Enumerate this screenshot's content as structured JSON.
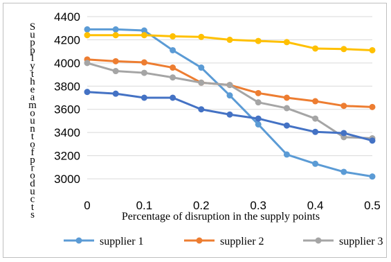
{
  "chart_data": {
    "type": "line",
    "title": "",
    "xlabel": "Percentage of disruption  in the supply points",
    "ylabel": "Supply the amount of products",
    "xlim": [
      0,
      0.5
    ],
    "ylim": [
      3000,
      4400
    ],
    "xticks": [
      "0",
      "0.1",
      "0.2",
      "0.3",
      "0.4",
      "0.5"
    ],
    "yticks": [
      "3000",
      "3200",
      "3400",
      "3600",
      "3800",
      "4000",
      "4200",
      "4400"
    ],
    "x": [
      0,
      0.05,
      0.1,
      0.15,
      0.2,
      0.25,
      0.3,
      0.35,
      0.4,
      0.45,
      0.5
    ],
    "grid": true,
    "legend_position": "bottom",
    "series": [
      {
        "name": "supplier 1",
        "color": "#5B9BD5",
        "values": [
          4290,
          4290,
          4280,
          4110,
          3960,
          3720,
          3470,
          3210,
          3130,
          3060,
          3020
        ]
      },
      {
        "name": "supplier 2",
        "color": "#ED7D31",
        "values": [
          4030,
          4015,
          4005,
          3960,
          3830,
          3810,
          3740,
          3700,
          3670,
          3630,
          3620
        ]
      },
      {
        "name": "supplier 3",
        "color": "#A5A5A5",
        "values": [
          4000,
          3930,
          3915,
          3875,
          3830,
          3810,
          3660,
          3610,
          3520,
          3360,
          3350
        ]
      },
      {
        "name": "",
        "color": "#FFC000",
        "values": [
          4240,
          4240,
          4240,
          4230,
          4225,
          4200,
          4190,
          4180,
          4125,
          4120,
          4110
        ]
      },
      {
        "name": "",
        "color": "#4472C4",
        "values": [
          3750,
          3735,
          3700,
          3700,
          3600,
          3555,
          3520,
          3460,
          3405,
          3395,
          3330
        ]
      }
    ]
  }
}
